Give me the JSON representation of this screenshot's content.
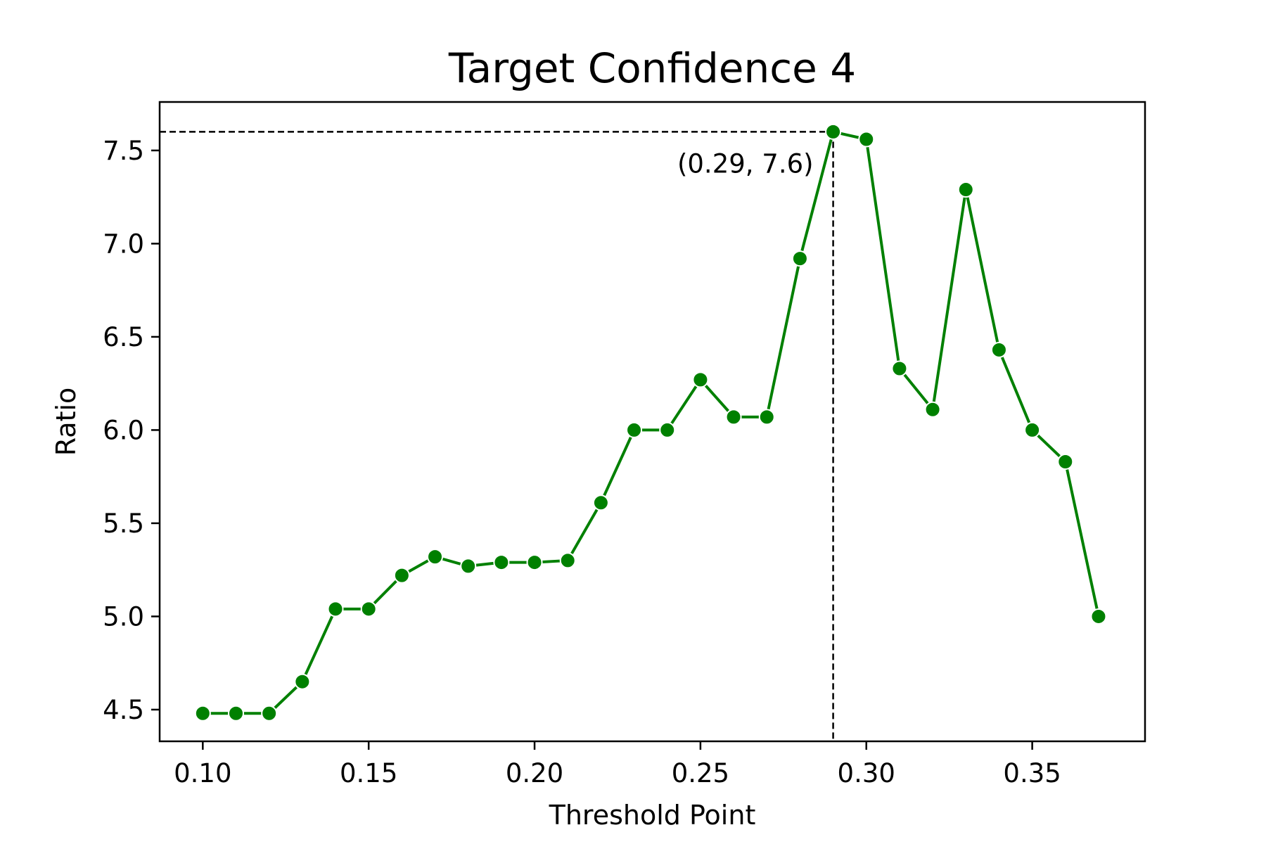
{
  "chart_data": {
    "type": "line",
    "title": "Target Confidence 4",
    "xlabel": "Threshold Point",
    "ylabel": "Ratio",
    "xlim": [
      0.087,
      0.384
    ],
    "ylim": [
      4.33,
      7.76
    ],
    "grid": false,
    "series": [
      {
        "color": "#008000",
        "marker": "circle",
        "x": [
          0.1,
          0.11,
          0.12,
          0.13,
          0.14,
          0.15,
          0.16,
          0.17,
          0.18,
          0.19,
          0.2,
          0.21,
          0.22,
          0.23,
          0.24,
          0.25,
          0.26,
          0.27,
          0.28,
          0.29,
          0.3,
          0.31,
          0.32,
          0.33,
          0.34,
          0.35,
          0.36,
          0.37
        ],
        "y": [
          4.48,
          4.48,
          4.48,
          4.65,
          5.04,
          5.04,
          5.22,
          5.32,
          5.27,
          5.29,
          5.29,
          5.3,
          5.61,
          6.0,
          6.0,
          6.27,
          6.07,
          6.07,
          6.92,
          7.6,
          7.56,
          6.33,
          6.11,
          7.29,
          6.43,
          6.0,
          5.83,
          5.0
        ]
      }
    ],
    "xticks": [
      "0.10",
      "0.15",
      "0.20",
      "0.25",
      "0.30",
      "0.35"
    ],
    "yticks": [
      "4.5",
      "5.0",
      "5.5",
      "6.0",
      "6.5",
      "7.0",
      "7.5"
    ],
    "annotation": {
      "x": 0.29,
      "y": 7.6,
      "text": "(0.29, 7.6)",
      "line_style": "dashed",
      "line_color": "#000000"
    }
  }
}
